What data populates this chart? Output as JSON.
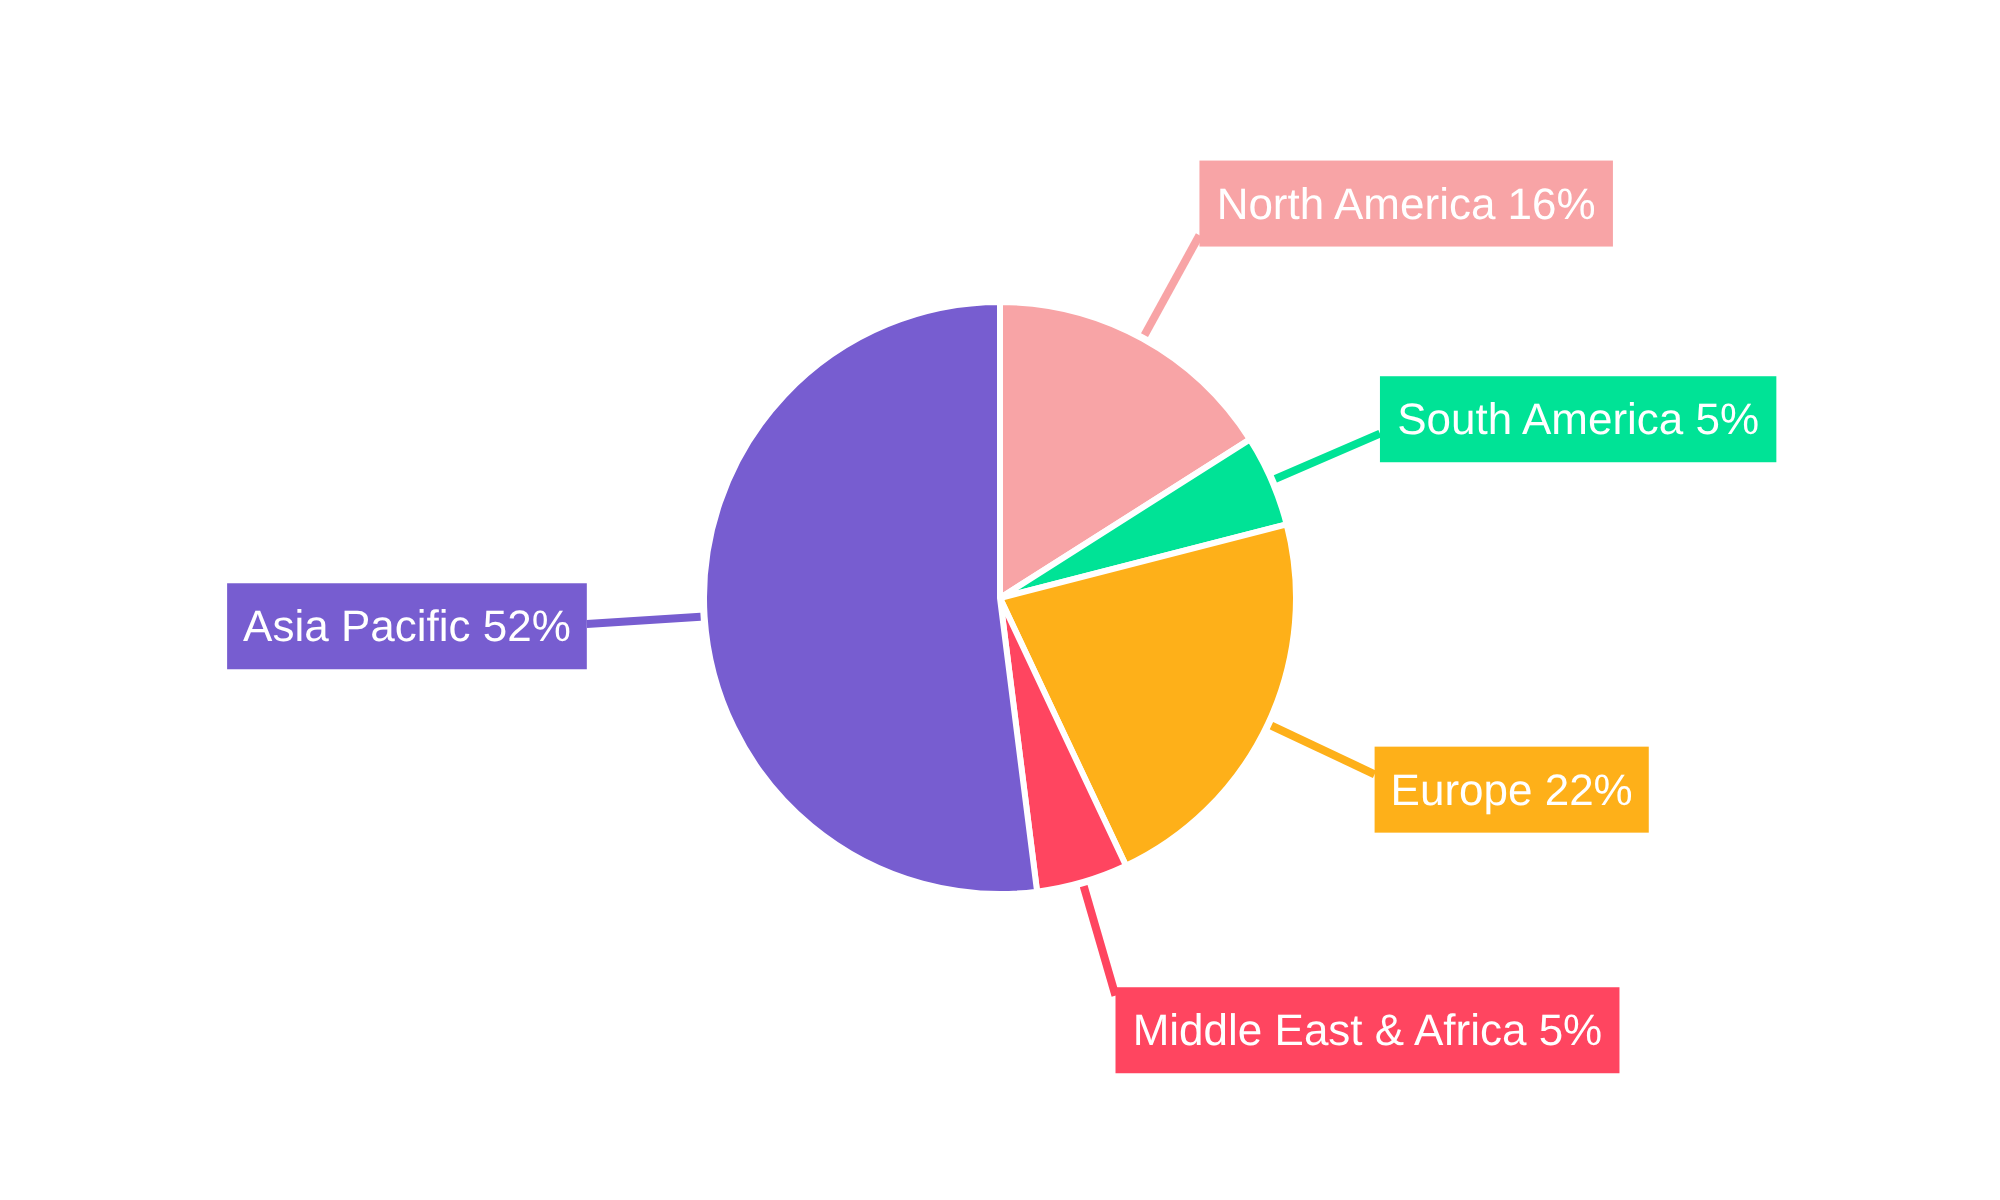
{
  "chart_data": {
    "type": "pie",
    "categories": [
      "North America",
      "South America",
      "Europe",
      "Middle East & Africa",
      "Asia Pacific"
    ],
    "values": [
      16,
      5,
      22,
      5,
      52
    ],
    "colors": [
      "#f8a4a6",
      "#00e396",
      "#feb019",
      "#ff4560",
      "#775dd0"
    ],
    "value_labels": [
      "16%",
      "5%",
      "22%",
      "5%",
      "52%"
    ]
  }
}
